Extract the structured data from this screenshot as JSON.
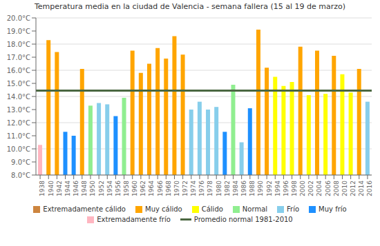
{
  "chart_data": {
    "type": "bar",
    "title": "Temperatura media en la ciudad de Valencia - semana fallera (15 al 19 de marzo)",
    "categories": [
      "1938",
      "1940",
      "1942",
      "1944",
      "1946",
      "1948",
      "1950",
      "1952",
      "1954",
      "1956",
      "1958",
      "1960",
      "1962",
      "1964",
      "1966",
      "1968",
      "1970",
      "1972",
      "1974",
      "1976",
      "1978",
      "1980",
      "1982",
      "1984",
      "1986",
      "1988",
      "1990",
      "1992",
      "1994",
      "1996",
      "1998",
      "2000",
      "2002",
      "2004",
      "2006",
      "2008",
      "2010",
      "2012",
      "2014",
      "2016"
    ],
    "series": [
      {
        "name": "Extremadamente cálido",
        "type": "bar",
        "color": "#cd853f",
        "values": [
          null,
          null,
          null,
          null,
          null,
          null,
          null,
          null,
          null,
          null,
          null,
          null,
          null,
          null,
          null,
          null,
          null,
          null,
          null,
          null,
          null,
          null,
          null,
          null,
          null,
          null,
          null,
          null,
          null,
          null,
          null,
          null,
          null,
          null,
          null,
          null,
          null,
          null,
          null,
          null
        ]
      },
      {
        "name": "Muy cálido",
        "type": "bar",
        "color": "#ffa500",
        "values": [
          null,
          18.3,
          17.4,
          null,
          null,
          16.1,
          null,
          null,
          null,
          null,
          null,
          17.5,
          15.8,
          16.5,
          17.7,
          16.9,
          18.6,
          17.2,
          null,
          null,
          null,
          null,
          null,
          null,
          null,
          null,
          19.1,
          16.2,
          null,
          null,
          null,
          17.8,
          null,
          17.5,
          null,
          17.1,
          null,
          null,
          16.1,
          null
        ]
      },
      {
        "name": "Cálido",
        "type": "bar",
        "color": "#ffff00",
        "values": [
          null,
          null,
          null,
          null,
          null,
          null,
          null,
          null,
          null,
          null,
          null,
          null,
          null,
          null,
          null,
          null,
          null,
          null,
          null,
          null,
          null,
          null,
          null,
          null,
          null,
          null,
          null,
          null,
          15.5,
          14.8,
          15.1,
          null,
          14.1,
          null,
          14.2,
          null,
          15.7,
          14.3,
          null,
          null
        ]
      },
      {
        "name": "Normal",
        "type": "bar",
        "color": "#90ee90",
        "values": [
          null,
          null,
          null,
          null,
          null,
          null,
          13.3,
          null,
          null,
          null,
          13.9,
          null,
          null,
          null,
          null,
          null,
          null,
          null,
          null,
          null,
          null,
          null,
          null,
          14.9,
          null,
          null,
          null,
          null,
          null,
          null,
          null,
          null,
          null,
          null,
          null,
          null,
          null,
          null,
          null,
          null
        ]
      },
      {
        "name": "Frío",
        "type": "bar",
        "color": "#87ceeb",
        "values": [
          null,
          null,
          null,
          null,
          null,
          null,
          null,
          13.5,
          13.4,
          null,
          null,
          null,
          null,
          null,
          null,
          null,
          null,
          null,
          13.0,
          13.6,
          13.0,
          13.2,
          null,
          null,
          10.5,
          null,
          null,
          null,
          null,
          null,
          null,
          null,
          null,
          null,
          null,
          null,
          null,
          null,
          null,
          13.6
        ]
      },
      {
        "name": "Muy frío",
        "type": "bar",
        "color": "#1e90ff",
        "values": [
          null,
          null,
          null,
          11.3,
          11.0,
          null,
          null,
          null,
          null,
          12.5,
          null,
          null,
          null,
          null,
          null,
          null,
          null,
          null,
          null,
          null,
          null,
          null,
          11.3,
          null,
          null,
          13.1,
          null,
          null,
          null,
          null,
          null,
          null,
          null,
          null,
          null,
          null,
          null,
          null,
          null,
          null
        ]
      },
      {
        "name": "Extremadamente frío",
        "type": "bar",
        "color": "#ffb6c1",
        "values": [
          10.3,
          null,
          null,
          null,
          null,
          null,
          null,
          null,
          null,
          null,
          null,
          null,
          null,
          null,
          null,
          null,
          null,
          null,
          null,
          null,
          null,
          null,
          null,
          null,
          null,
          null,
          null,
          null,
          null,
          null,
          null,
          null,
          null,
          null,
          null,
          null,
          null,
          null,
          null,
          null
        ]
      },
      {
        "name": "Promedio normal 1981-2010",
        "type": "line",
        "color": "#4a6741",
        "value": 14.45
      }
    ],
    "ylim": [
      8.0,
      20.0
    ],
    "yticks": [
      {
        "value": 8.0,
        "label": "8.0°C"
      },
      {
        "value": 9.0,
        "label": "9.0°C"
      },
      {
        "value": 10.0,
        "label": "10.0°C"
      },
      {
        "value": 11.0,
        "label": "11.0°C"
      },
      {
        "value": 12.0,
        "label": "12.0°C"
      },
      {
        "value": 13.0,
        "label": "13.0°C"
      },
      {
        "value": 14.0,
        "label": "14.0°C"
      },
      {
        "value": 15.0,
        "label": "15.0°C"
      },
      {
        "value": 16.0,
        "label": "16.0°C"
      },
      {
        "value": 17.0,
        "label": "17.0°C"
      },
      {
        "value": 18.0,
        "label": "18.0°C"
      },
      {
        "value": 19.0,
        "label": "19.0°C"
      },
      {
        "value": 20.0,
        "label": "20.0°C"
      }
    ],
    "grid": true
  }
}
